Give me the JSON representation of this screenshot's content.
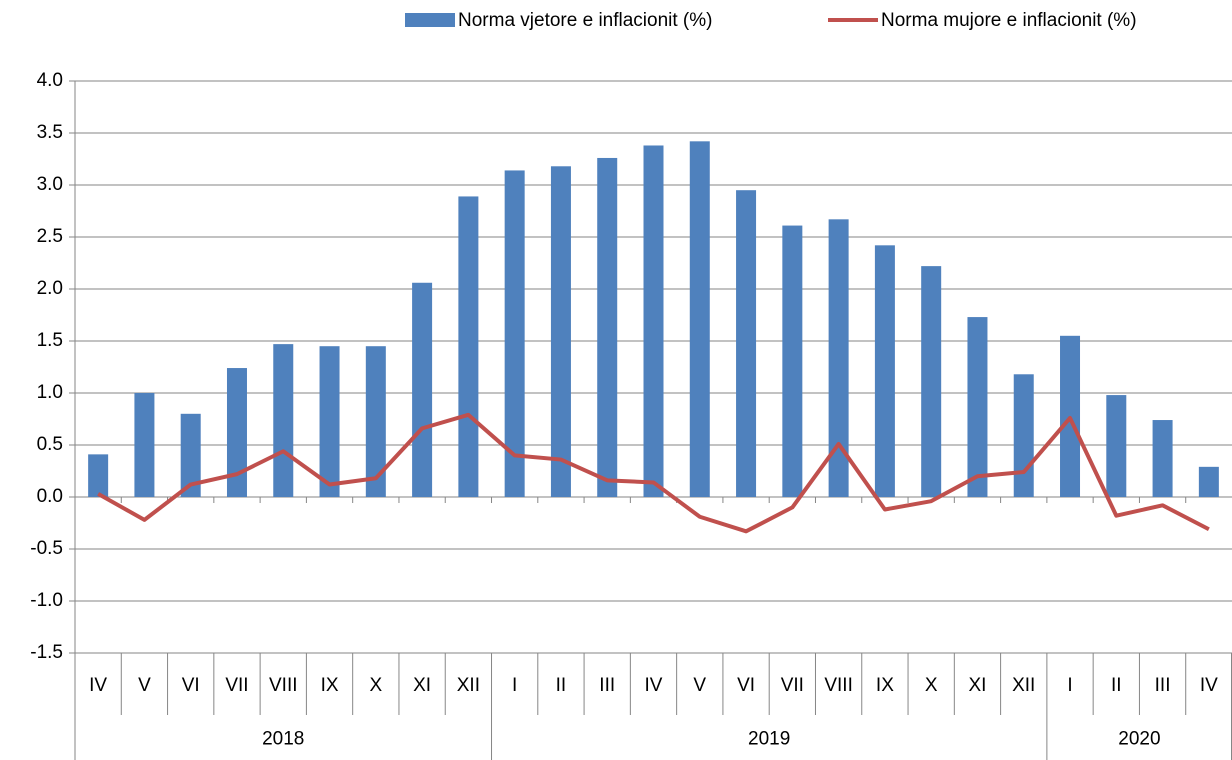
{
  "chart_data": {
    "type": "bar",
    "groups": [
      {
        "label": "2018",
        "categories": [
          "IV",
          "V",
          "VI",
          "VII",
          "VIII",
          "IX",
          "X",
          "XI",
          "XII"
        ]
      },
      {
        "label": "2019",
        "categories": [
          "I",
          "II",
          "III",
          "IV",
          "V",
          "VI",
          "VII",
          "VIII",
          "IX",
          "X",
          "XI",
          "XII"
        ]
      },
      {
        "label": "2020",
        "categories": [
          "I",
          "II",
          "III",
          "IV"
        ]
      }
    ],
    "series": [
      {
        "name": "Norma vjetore e inflacionit (%)",
        "type": "bar",
        "color": "#4f81bd",
        "values": [
          0.41,
          1.0,
          0.8,
          1.24,
          1.47,
          1.45,
          1.45,
          2.06,
          2.89,
          3.14,
          3.18,
          3.26,
          3.38,
          3.42,
          2.95,
          2.61,
          2.67,
          2.42,
          2.22,
          1.73,
          1.18,
          1.55,
          0.98,
          0.74,
          0.29
        ]
      },
      {
        "name": "Norma mujore e inflacionit (%)",
        "type": "line",
        "color": "#c0504d",
        "values": [
          0.03,
          -0.22,
          0.12,
          0.22,
          0.44,
          0.12,
          0.18,
          0.66,
          0.79,
          0.4,
          0.36,
          0.16,
          0.14,
          -0.19,
          -0.33,
          -0.1,
          0.51,
          -0.12,
          -0.04,
          0.2,
          0.24,
          0.76,
          -0.18,
          -0.08,
          -0.31
        ]
      }
    ],
    "ylim": [
      -1.5,
      4.0
    ],
    "yticks": [
      -1.5,
      {
        "value": -1.0,
        "label": "-1.0"
      },
      -0.5,
      {
        "value": 0,
        "label": "0.0"
      },
      0.5,
      {
        "value": 1.0,
        "label": "1.0"
      },
      1.5,
      {
        "value": 2.0,
        "label": "2.0"
      },
      2.5,
      {
        "value": 3.0,
        "label": "3.0"
      },
      3.5,
      {
        "value": 4.0,
        "label": "4.0"
      }
    ],
    "grid": true,
    "legend": "top"
  }
}
